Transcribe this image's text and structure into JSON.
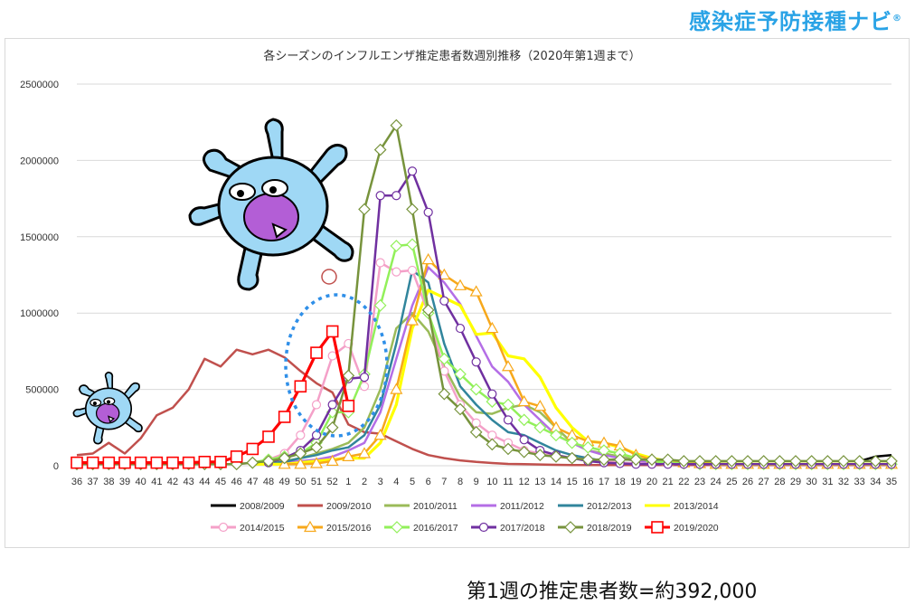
{
  "brand": {
    "name": "感染症予防接種ナビ",
    "reg_mark": "®",
    "accent": "#2aa3e6"
  },
  "summary": {
    "text": "第1週の推定患者数=約392,000"
  },
  "chart_data": {
    "type": "line",
    "title": "各シーズンのインフルエンザ推定患者数週別推移（2020年第1週まで）",
    "xlabel": "",
    "ylabel": "",
    "ylim": [
      0,
      2500000
    ],
    "yticks": [
      0,
      500000,
      1000000,
      1500000,
      2000000,
      2500000
    ],
    "ytick_labels": [
      "0",
      "500000",
      "1000000",
      "1500000",
      "2000000",
      "2500000"
    ],
    "grid": true,
    "legend_position": "bottom",
    "categories": [
      "36",
      "37",
      "38",
      "39",
      "40",
      "41",
      "42",
      "43",
      "44",
      "45",
      "46",
      "47",
      "48",
      "49",
      "50",
      "51",
      "52",
      "1",
      "2",
      "3",
      "4",
      "5",
      "6",
      "7",
      "8",
      "9",
      "10",
      "11",
      "12",
      "13",
      "14",
      "15",
      "16",
      "17",
      "18",
      "19",
      "20",
      "21",
      "22",
      "23",
      "24",
      "25",
      "26",
      "27",
      "28",
      "29",
      "30",
      "31",
      "32",
      "33",
      "34",
      "35"
    ],
    "series": [
      {
        "name": "2008/2009",
        "color": "#000000",
        "marker": "none",
        "values": [
          null,
          null,
          null,
          null,
          null,
          null,
          null,
          null,
          null,
          null,
          null,
          null,
          null,
          null,
          null,
          null,
          null,
          null,
          null,
          null,
          null,
          null,
          null,
          null,
          null,
          null,
          null,
          null,
          null,
          null,
          null,
          null,
          null,
          null,
          null,
          null,
          null,
          null,
          null,
          null,
          null,
          null,
          null,
          null,
          null,
          null,
          null,
          null,
          null,
          30000,
          60000,
          70000
        ]
      },
      {
        "name": "2009/2010",
        "color": "#c0504d",
        "marker": "none",
        "values": [
          70000,
          80000,
          150000,
          80000,
          180000,
          330000,
          380000,
          500000,
          700000,
          650000,
          760000,
          730000,
          760000,
          710000,
          620000,
          540000,
          480000,
          270000,
          220000,
          210000,
          160000,
          110000,
          70000,
          50000,
          35000,
          25000,
          18000,
          12000,
          10000,
          8000,
          6000,
          5000,
          5000,
          5000,
          5000,
          5000,
          5000,
          5000,
          5000,
          5000,
          5000,
          5000,
          5000,
          5000,
          5000,
          5000,
          5000,
          5000,
          5000,
          5000,
          5000,
          5000
        ]
      },
      {
        "name": "2010/2011",
        "color": "#9bbb59",
        "marker": "none",
        "values": [
          null,
          null,
          null,
          null,
          null,
          null,
          null,
          null,
          null,
          null,
          null,
          10000,
          20000,
          30000,
          50000,
          80000,
          110000,
          150000,
          250000,
          500000,
          900000,
          1000000,
          880000,
          650000,
          450000,
          350000,
          340000,
          380000,
          400000,
          350000,
          250000,
          150000,
          100000,
          80000,
          60000,
          40000,
          30000,
          25000,
          20000,
          18000,
          15000,
          12000,
          10000,
          10000,
          10000,
          10000,
          10000,
          10000,
          10000,
          10000,
          10000,
          10000
        ]
      },
      {
        "name": "2011/2012",
        "color": "#b46ee6",
        "marker": "none",
        "values": [
          null,
          null,
          null,
          null,
          null,
          null,
          null,
          null,
          null,
          null,
          null,
          10000,
          15000,
          20000,
          30000,
          40000,
          60000,
          100000,
          150000,
          350000,
          700000,
          1050000,
          1300000,
          1200000,
          1060000,
          850000,
          650000,
          550000,
          400000,
          300000,
          200000,
          150000,
          100000,
          70000,
          50000,
          30000,
          20000,
          15000,
          10000,
          10000,
          10000,
          10000,
          10000,
          10000,
          10000,
          10000,
          10000,
          10000,
          10000,
          10000,
          10000,
          10000
        ]
      },
      {
        "name": "2012/2013",
        "color": "#31859c",
        "marker": "none",
        "values": [
          null,
          null,
          null,
          null,
          null,
          null,
          null,
          null,
          null,
          null,
          null,
          10000,
          15000,
          25000,
          50000,
          70000,
          100000,
          120000,
          200000,
          400000,
          800000,
          1280000,
          1200000,
          800000,
          520000,
          400000,
          300000,
          220000,
          200000,
          150000,
          100000,
          70000,
          50000,
          30000,
          20000,
          15000,
          10000,
          10000,
          10000,
          10000,
          10000,
          10000,
          10000,
          10000,
          10000,
          10000,
          10000,
          10000,
          10000,
          10000,
          10000,
          10000
        ]
      },
      {
        "name": "2013/2014",
        "color": "#ffff00",
        "marker": "none",
        "values": [
          null,
          null,
          null,
          null,
          null,
          null,
          null,
          null,
          null,
          null,
          null,
          10000,
          10000,
          10000,
          20000,
          30000,
          40000,
          50000,
          50000,
          150000,
          400000,
          900000,
          1150000,
          1100000,
          1050000,
          860000,
          870000,
          720000,
          700000,
          580000,
          380000,
          250000,
          160000,
          150000,
          120000,
          80000,
          50000,
          30000,
          20000,
          15000,
          10000,
          10000,
          10000,
          10000,
          10000,
          10000,
          10000,
          10000,
          10000,
          10000,
          10000,
          10000
        ]
      },
      {
        "name": "2014/2015",
        "color": "#f4a0c8",
        "marker": "circle",
        "values": [
          null,
          null,
          null,
          null,
          null,
          null,
          null,
          null,
          null,
          null,
          10000,
          20000,
          40000,
          80000,
          200000,
          400000,
          720000,
          800000,
          520000,
          1330000,
          1270000,
          1280000,
          1000000,
          620000,
          400000,
          280000,
          200000,
          150000,
          100000,
          80000,
          60000,
          50000,
          40000,
          30000,
          20000,
          15000,
          10000,
          10000,
          10000,
          10000,
          10000,
          10000,
          10000,
          10000,
          10000,
          10000,
          10000,
          10000,
          10000,
          10000,
          10000,
          10000
        ]
      },
      {
        "name": "2015/2016",
        "color": "#f7a81b",
        "marker": "triangle",
        "values": [
          null,
          null,
          null,
          null,
          null,
          null,
          null,
          null,
          null,
          null,
          null,
          null,
          null,
          10000,
          10000,
          15000,
          30000,
          60000,
          80000,
          200000,
          500000,
          950000,
          1350000,
          1250000,
          1180000,
          1140000,
          900000,
          650000,
          420000,
          390000,
          250000,
          200000,
          160000,
          150000,
          130000,
          70000,
          40000,
          30000,
          20000,
          15000,
          10000,
          10000,
          10000,
          10000,
          10000,
          10000,
          10000,
          10000,
          10000,
          10000,
          10000,
          10000
        ]
      },
      {
        "name": "2016/2017",
        "color": "#92f05a",
        "marker": "diamond",
        "values": [
          null,
          null,
          null,
          null,
          null,
          null,
          null,
          null,
          null,
          null,
          null,
          20000,
          40000,
          60000,
          80000,
          150000,
          350000,
          350000,
          600000,
          1050000,
          1440000,
          1450000,
          1000000,
          700000,
          600000,
          500000,
          420000,
          400000,
          300000,
          250000,
          200000,
          150000,
          120000,
          100000,
          80000,
          50000,
          30000,
          20000,
          15000,
          10000,
          10000,
          10000,
          10000,
          10000,
          10000,
          10000,
          10000,
          10000,
          10000,
          10000,
          10000,
          10000
        ]
      },
      {
        "name": "2017/2018",
        "color": "#7030a0",
        "marker": "circle",
        "values": [
          null,
          null,
          null,
          null,
          null,
          null,
          null,
          null,
          null,
          null,
          null,
          null,
          20000,
          50000,
          100000,
          200000,
          400000,
          570000,
          580000,
          1770000,
          1770000,
          1930000,
          1660000,
          1080000,
          900000,
          680000,
          470000,
          300000,
          170000,
          100000,
          70000,
          50000,
          30000,
          20000,
          15000,
          10000,
          10000,
          10000,
          10000,
          10000,
          10000,
          10000,
          10000,
          10000,
          10000,
          10000,
          10000,
          10000,
          10000,
          10000,
          10000,
          10000
        ]
      },
      {
        "name": "2018/2019",
        "color": "#77933c",
        "marker": "diamond",
        "values": [
          10000,
          10000,
          10000,
          10000,
          10000,
          10000,
          10000,
          10000,
          10000,
          10000,
          10000,
          20000,
          30000,
          50000,
          80000,
          120000,
          250000,
          590000,
          1680000,
          2070000,
          2230000,
          1680000,
          1020000,
          470000,
          370000,
          220000,
          140000,
          110000,
          90000,
          70000,
          60000,
          50000,
          40000,
          40000,
          40000,
          40000,
          40000,
          40000,
          30000,
          30000,
          30000,
          30000,
          30000,
          30000,
          30000,
          30000,
          30000,
          30000,
          30000,
          30000,
          30000,
          30000
        ]
      },
      {
        "name": "2019/2020",
        "color": "#ff0000",
        "marker": "square",
        "values": [
          20000,
          20000,
          20000,
          20000,
          20000,
          20000,
          20000,
          20000,
          25000,
          25000,
          60000,
          110000,
          190000,
          320000,
          520000,
          740000,
          880000,
          392000,
          null,
          null,
          null,
          null,
          null,
          null,
          null,
          null,
          null,
          null,
          null,
          null,
          null,
          null,
          null,
          null,
          null,
          null,
          null,
          null,
          null,
          null,
          null,
          null,
          null,
          null,
          null,
          null,
          null,
          null,
          null,
          null,
          null,
          null
        ]
      }
    ]
  }
}
